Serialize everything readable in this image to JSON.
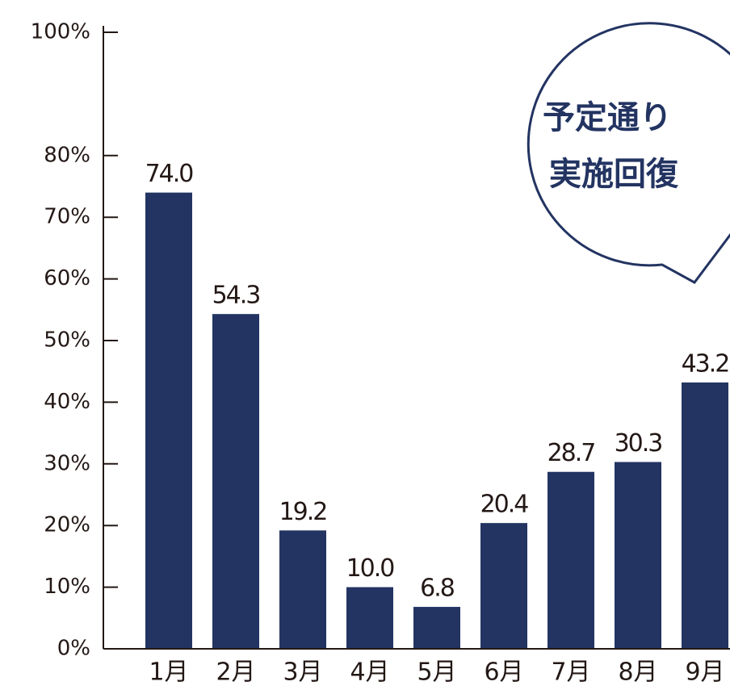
{
  "chart_data": {
    "type": "bar",
    "categories": [
      "1月",
      "2月",
      "3月",
      "4月",
      "5月",
      "6月",
      "7月",
      "8月",
      "9月"
    ],
    "values": [
      74.0,
      54.3,
      19.2,
      10.0,
      6.8,
      20.4,
      28.7,
      30.3,
      43.2
    ],
    "value_labels": [
      "74.0",
      "54.3",
      "19.2",
      "10.0",
      "6.8",
      "20.4",
      "28.7",
      "30.3",
      "43.2"
    ],
    "color": "#233462",
    "ylim": [
      0,
      100
    ],
    "yticks": [
      {
        "value": 0,
        "label": "0%"
      },
      {
        "value": 10,
        "label": "10%"
      },
      {
        "value": 20,
        "label": "20%"
      },
      {
        "value": 30,
        "label": "30%"
      },
      {
        "value": 40,
        "label": "40%"
      },
      {
        "value": 50,
        "label": "50%"
      },
      {
        "value": 60,
        "label": "60%"
      },
      {
        "value": 70,
        "label": "70%"
      },
      {
        "value": 80,
        "label": "80%"
      },
      {
        "value": 100,
        "label": "100%"
      }
    ],
    "annotation": [
      "予定通り",
      "実施回復"
    ]
  }
}
